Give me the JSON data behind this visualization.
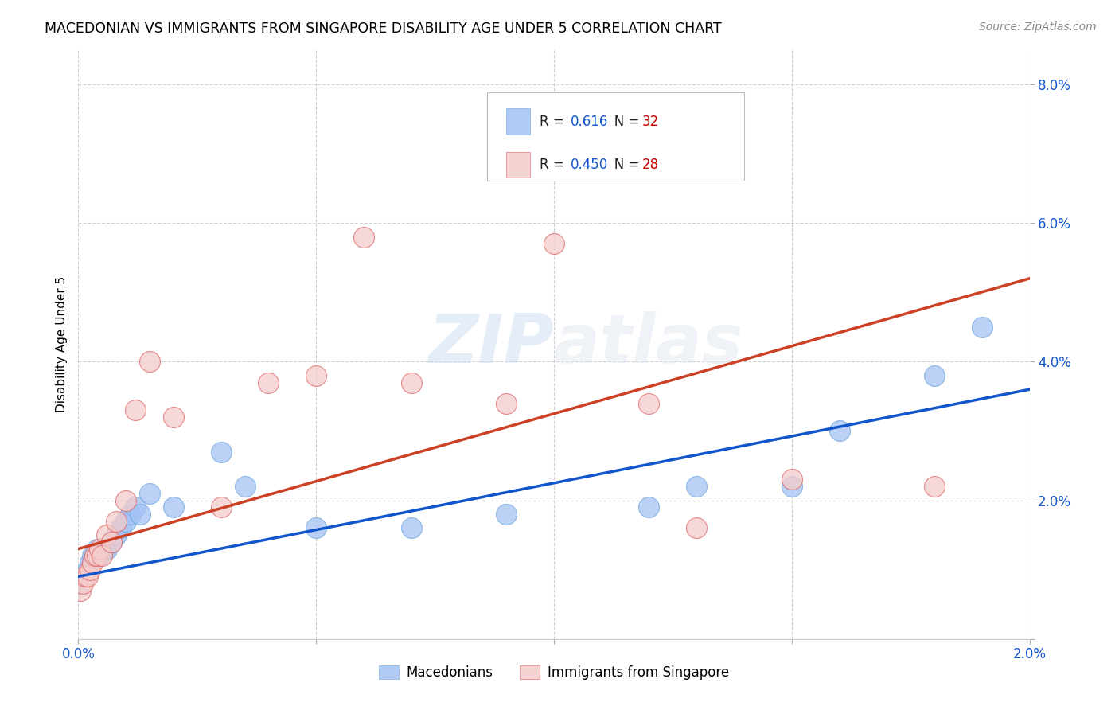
{
  "title": "MACEDONIAN VS IMMIGRANTS FROM SINGAPORE DISABILITY AGE UNDER 5 CORRELATION CHART",
  "source": "Source: ZipAtlas.com",
  "ylabel": "Disability Age Under 5",
  "xlim": [
    0.0,
    0.02
  ],
  "ylim": [
    0.0,
    0.085
  ],
  "xticks": [
    0.0,
    0.005,
    0.01,
    0.015,
    0.02
  ],
  "xtick_labels": [
    "0.0%",
    "",
    "",
    "",
    "2.0%"
  ],
  "yticks": [
    0.0,
    0.02,
    0.04,
    0.06,
    0.08
  ],
  "ytick_labels": [
    "",
    "2.0%",
    "4.0%",
    "6.0%",
    "8.0%"
  ],
  "blue_color": "#a4c2f4",
  "pink_color": "#f4cccc",
  "blue_line_color": "#1155cc",
  "pink_line_color": "#cc4125",
  "blue_marker_edge": "#6fa8dc",
  "pink_marker_edge": "#e06666",
  "legend_R_blue": "0.616",
  "legend_N_blue": "32",
  "legend_R_pink": "0.450",
  "legend_N_pink": "28",
  "macedonians_x": [
    5e-05,
    0.0001,
    0.00015,
    0.0002,
    0.00025,
    0.0003,
    0.00035,
    0.0004,
    0.00045,
    0.0005,
    0.00055,
    0.0006,
    0.0007,
    0.0008,
    0.0009,
    0.001,
    0.0011,
    0.0012,
    0.0013,
    0.0015,
    0.002,
    0.003,
    0.0035,
    0.005,
    0.007,
    0.009,
    0.012,
    0.013,
    0.015,
    0.016,
    0.018,
    0.019
  ],
  "macedonians_y": [
    0.008,
    0.009,
    0.009,
    0.01,
    0.011,
    0.012,
    0.012,
    0.013,
    0.012,
    0.013,
    0.013,
    0.013,
    0.014,
    0.015,
    0.016,
    0.017,
    0.018,
    0.019,
    0.018,
    0.021,
    0.019,
    0.027,
    0.022,
    0.016,
    0.016,
    0.018,
    0.019,
    0.022,
    0.022,
    0.03,
    0.038,
    0.045
  ],
  "singapore_x": [
    5e-05,
    0.0001,
    0.00015,
    0.0002,
    0.00025,
    0.0003,
    0.00035,
    0.0004,
    0.00045,
    0.0005,
    0.0006,
    0.0007,
    0.0008,
    0.001,
    0.0012,
    0.0015,
    0.002,
    0.003,
    0.004,
    0.005,
    0.006,
    0.007,
    0.009,
    0.01,
    0.012,
    0.013,
    0.015,
    0.018
  ],
  "singapore_y": [
    0.007,
    0.008,
    0.009,
    0.009,
    0.01,
    0.011,
    0.012,
    0.012,
    0.013,
    0.012,
    0.015,
    0.014,
    0.017,
    0.02,
    0.033,
    0.04,
    0.032,
    0.019,
    0.037,
    0.038,
    0.058,
    0.037,
    0.034,
    0.057,
    0.034,
    0.016,
    0.023,
    0.022
  ],
  "mac_line_x": [
    0.0,
    0.02
  ],
  "mac_line_y": [
    0.009,
    0.036
  ],
  "sin_line_x": [
    0.0,
    0.02
  ],
  "sin_line_y": [
    0.013,
    0.052
  ]
}
